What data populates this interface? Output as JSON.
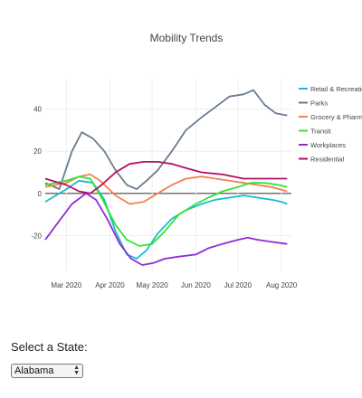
{
  "chart_data": {
    "type": "line",
    "title": "Mobility Trends",
    "xlabel": "",
    "ylabel": "",
    "x_range": [
      "2020-02-15",
      "2020-08-08"
    ],
    "ylim": [
      -37,
      54
    ],
    "y_ticks": [
      -20,
      0,
      20,
      40
    ],
    "y_tick_labels": [
      "-20",
      "0",
      "20",
      "40"
    ],
    "x_ticks": [
      "2020-03-01",
      "2020-04-01",
      "2020-05-01",
      "2020-06-01",
      "2020-07-01",
      "2020-08-01"
    ],
    "x_tick_labels": [
      "Mar 2020",
      "Apr 2020",
      "May 2020",
      "Jun 2020",
      "Jul 2020",
      "Aug 2020"
    ],
    "grid": true,
    "zero_line": true,
    "legend_position": "right",
    "series": [
      {
        "name": "Retail & Recreation",
        "color": "#17becf",
        "x": [
          "2020-02-15",
          "2020-03-01",
          "2020-03-10",
          "2020-03-20",
          "2020-03-28",
          "2020-04-05",
          "2020-04-13",
          "2020-04-20",
          "2020-04-27",
          "2020-05-05",
          "2020-05-15",
          "2020-05-25",
          "2020-06-05",
          "2020-06-15",
          "2020-06-25",
          "2020-07-05",
          "2020-07-15",
          "2020-07-25",
          "2020-08-01",
          "2020-08-05"
        ],
        "values": [
          -4,
          2,
          6,
          5,
          -3,
          -18,
          -29,
          -31,
          -27,
          -19,
          -12,
          -8,
          -5,
          -3,
          -2,
          -1,
          -2,
          -3,
          -4,
          -5
        ]
      },
      {
        "name": "Parks",
        "color": "#6b7b8f",
        "x": [
          "2020-02-15",
          "2020-02-25",
          "2020-03-05",
          "2020-03-12",
          "2020-03-20",
          "2020-03-28",
          "2020-04-05",
          "2020-04-13",
          "2020-04-20",
          "2020-04-27",
          "2020-05-05",
          "2020-05-15",
          "2020-05-25",
          "2020-06-05",
          "2020-06-15",
          "2020-06-25",
          "2020-07-05",
          "2020-07-12",
          "2020-07-20",
          "2020-07-28",
          "2020-08-05"
        ],
        "values": [
          5,
          2,
          20,
          29,
          26,
          20,
          11,
          4,
          2,
          6,
          11,
          20,
          30,
          36,
          41,
          46,
          47,
          49,
          42,
          38,
          37
        ]
      },
      {
        "name": "Grocery & Pharmacy",
        "color": "#f4814f",
        "x": [
          "2020-02-15",
          "2020-03-01",
          "2020-03-10",
          "2020-03-18",
          "2020-03-25",
          "2020-04-05",
          "2020-04-15",
          "2020-04-25",
          "2020-05-05",
          "2020-05-15",
          "2020-05-25",
          "2020-06-05",
          "2020-06-15",
          "2020-06-25",
          "2020-07-05",
          "2020-07-15",
          "2020-07-25",
          "2020-08-05"
        ],
        "values": [
          3,
          5,
          8,
          9,
          6,
          -1,
          -5,
          -4,
          0,
          4,
          7,
          8,
          7,
          6,
          5,
          4,
          3,
          1
        ]
      },
      {
        "name": "Transit",
        "color": "#2ee62e",
        "x": [
          "2020-02-15",
          "2020-03-01",
          "2020-03-10",
          "2020-03-18",
          "2020-03-26",
          "2020-04-05",
          "2020-04-13",
          "2020-04-22",
          "2020-05-01",
          "2020-05-10",
          "2020-05-20",
          "2020-06-01",
          "2020-06-10",
          "2020-06-20",
          "2020-07-01",
          "2020-07-10",
          "2020-07-20",
          "2020-07-30",
          "2020-08-05"
        ],
        "values": [
          4,
          6,
          8,
          7,
          -2,
          -15,
          -22,
          -25,
          -24,
          -18,
          -10,
          -5,
          -2,
          1,
          3,
          5,
          5,
          4,
          3
        ]
      },
      {
        "name": "Workplaces",
        "color": "#8e2bd6",
        "x": [
          "2020-02-15",
          "2020-02-25",
          "2020-03-05",
          "2020-03-15",
          "2020-03-22",
          "2020-03-30",
          "2020-04-08",
          "2020-04-16",
          "2020-04-24",
          "2020-05-02",
          "2020-05-10",
          "2020-05-20",
          "2020-06-01",
          "2020-06-10",
          "2020-06-20",
          "2020-07-01",
          "2020-07-08",
          "2020-07-15",
          "2020-07-25",
          "2020-08-05"
        ],
        "values": [
          -22,
          -13,
          -5,
          0,
          -3,
          -12,
          -24,
          -31,
          -34,
          -33,
          -31,
          -30,
          -29,
          -26,
          -24,
          -22,
          -21,
          -22,
          -23,
          -24
        ]
      },
      {
        "name": "Residential",
        "color": "#b0126a",
        "x": [
          "2020-02-15",
          "2020-03-01",
          "2020-03-10",
          "2020-03-18",
          "2020-03-26",
          "2020-04-05",
          "2020-04-15",
          "2020-04-25",
          "2020-05-05",
          "2020-05-15",
          "2020-05-25",
          "2020-06-05",
          "2020-06-20",
          "2020-07-05",
          "2020-07-20",
          "2020-08-05"
        ],
        "values": [
          7,
          4,
          1,
          0,
          4,
          10,
          14,
          15,
          15,
          14,
          12,
          10,
          9,
          7,
          7,
          7
        ]
      }
    ]
  },
  "selector": {
    "label": "Select a State:",
    "value": "Alabama"
  }
}
